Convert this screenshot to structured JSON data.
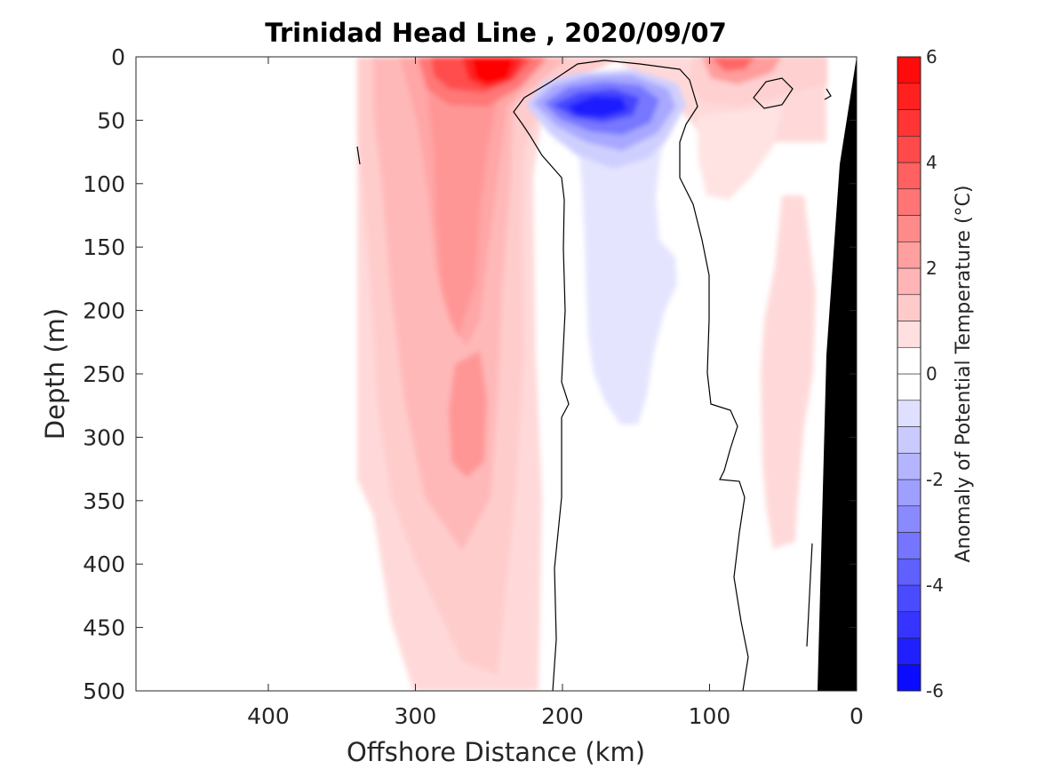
{
  "chart_data": {
    "type": "contour",
    "title": "Trinidad Head Line , 2020/09/07",
    "xlabel": "Offshore Distance (km)",
    "ylabel": "Depth (m)",
    "xlim": [
      490,
      0
    ],
    "ylim": [
      0,
      500
    ],
    "x_reversed": true,
    "y_reversed": true,
    "xticks": [
      400,
      300,
      200,
      100,
      0
    ],
    "yticks": [
      0,
      50,
      100,
      150,
      200,
      250,
      300,
      350,
      400,
      450,
      500
    ],
    "grid": false,
    "colorbar": {
      "label": "Anomaly of Potential Temperature (°C)",
      "range": [
        -6,
        6
      ],
      "levels": [
        -6,
        -5.5,
        -5,
        -4.5,
        -4,
        -3.5,
        -3,
        -2.5,
        -2,
        -1.5,
        -1,
        -0.5,
        0,
        0.5,
        1,
        1.5,
        2,
        2.5,
        3,
        3.5,
        4,
        4.5,
        5,
        5.5,
        6
      ],
      "ticks": [
        -6,
        -4,
        -2,
        0,
        2,
        4,
        6
      ],
      "tick_labels": [
        "-6",
        "-4",
        "-2",
        "0",
        "2",
        "4",
        "6"
      ],
      "colormap": "blue-white-red"
    },
    "warm_anomaly": {
      "x_range_km": [
        340,
        220
      ],
      "core_x_km": 250,
      "core_depth_m": 15,
      "max_value": 6,
      "subsurface_core_x_km": 265,
      "subsurface_value": 2.5
    },
    "cold_anomaly": {
      "x_range_km": [
        225,
        120
      ],
      "core_x_km": 180,
      "core_depth_m": 40,
      "min_value": -4.5,
      "weak_tongue_depth_m": [
        90,
        290
      ],
      "weak_tongue_value": -0.5
    },
    "nearshore_warm_anomaly": {
      "x_range_km": [
        125,
        0
      ],
      "max_value": 2.5,
      "deep_value": 0.7
    },
    "bathymetry_color": "#000000",
    "colors": {
      "max_red": "#ff0000",
      "max_blue": "#0000ff",
      "zero": "#ffffff"
    }
  }
}
